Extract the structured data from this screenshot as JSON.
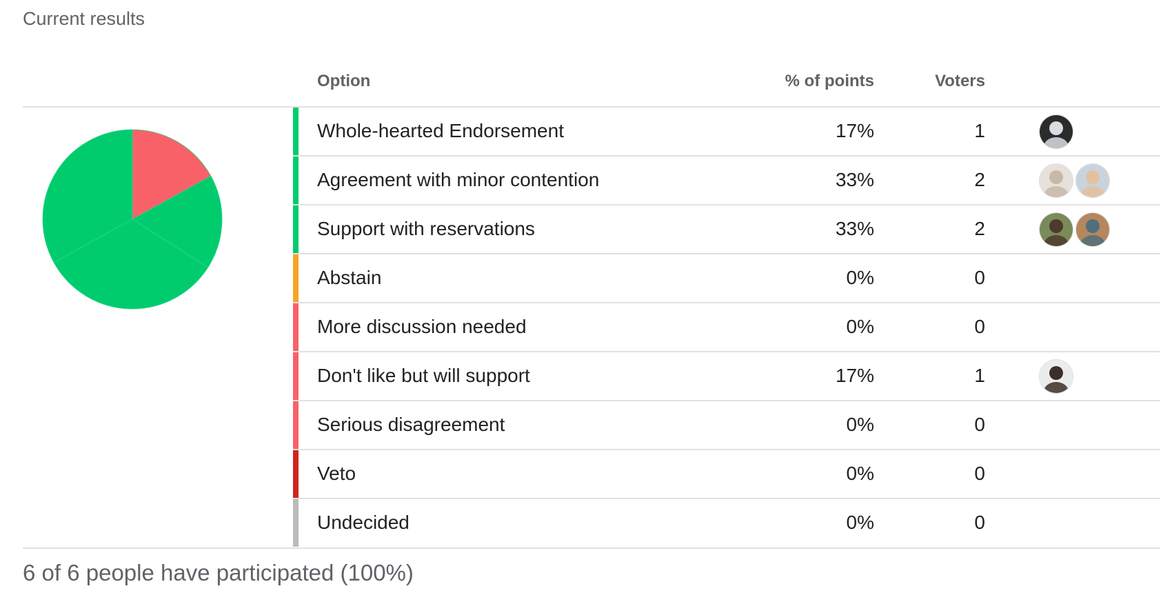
{
  "title": "Current results",
  "columns": {
    "option": "Option",
    "points": "% of points",
    "voters": "Voters"
  },
  "chart_data": {
    "type": "pie",
    "slices": [
      {
        "label": "Whole-hearted Endorsement",
        "value": 17,
        "color": "#00cc6e"
      },
      {
        "label": "Agreement with minor contention",
        "value": 33,
        "color": "#00cc6e"
      },
      {
        "label": "Support with reservations",
        "value": 33,
        "color": "#00cc6e"
      },
      {
        "label": "Don't like but will support",
        "value": 17,
        "color": "#f96168"
      }
    ]
  },
  "options": [
    {
      "label": "Whole-hearted Endorsement",
      "percent": "17%",
      "voters": "1",
      "color": "#00cc6e",
      "avatars": [
        "avatar-1"
      ]
    },
    {
      "label": "Agreement with minor contention",
      "percent": "33%",
      "voters": "2",
      "color": "#00cc6e",
      "avatars": [
        "avatar-2",
        "avatar-3"
      ]
    },
    {
      "label": "Support with reservations",
      "percent": "33%",
      "voters": "2",
      "color": "#00cc6e",
      "avatars": [
        "avatar-4",
        "avatar-5"
      ]
    },
    {
      "label": "Abstain",
      "percent": "0%",
      "voters": "0",
      "color": "#f6a623",
      "avatars": []
    },
    {
      "label": "More discussion needed",
      "percent": "0%",
      "voters": "0",
      "color": "#f96168",
      "avatars": []
    },
    {
      "label": "Don't like but will support",
      "percent": "17%",
      "voters": "1",
      "color": "#f96168",
      "avatars": [
        "avatar-6"
      ]
    },
    {
      "label": "Serious disagreement",
      "percent": "0%",
      "voters": "0",
      "color": "#f96168",
      "avatars": []
    },
    {
      "label": "Veto",
      "percent": "0%",
      "voters": "0",
      "color": "#ce261b",
      "avatars": []
    },
    {
      "label": "Undecided",
      "percent": "0%",
      "voters": "0",
      "color": "#bbbbbb",
      "avatars": []
    }
  ],
  "avatar_colors": {
    "avatar-1": [
      "#d9dde3",
      "#2b2b2b"
    ],
    "avatar-2": [
      "#c8b8a8",
      "#e7e1dc"
    ],
    "avatar-3": [
      "#e3c09e",
      "#c9d3dc"
    ],
    "avatar-4": [
      "#4c3a2d",
      "#7a8a59"
    ],
    "avatar-5": [
      "#4f6f7d",
      "#b5875c"
    ],
    "avatar-6": [
      "#3c2f28",
      "#ececec"
    ]
  },
  "footer": "6 of 6 people have participated (100%)"
}
